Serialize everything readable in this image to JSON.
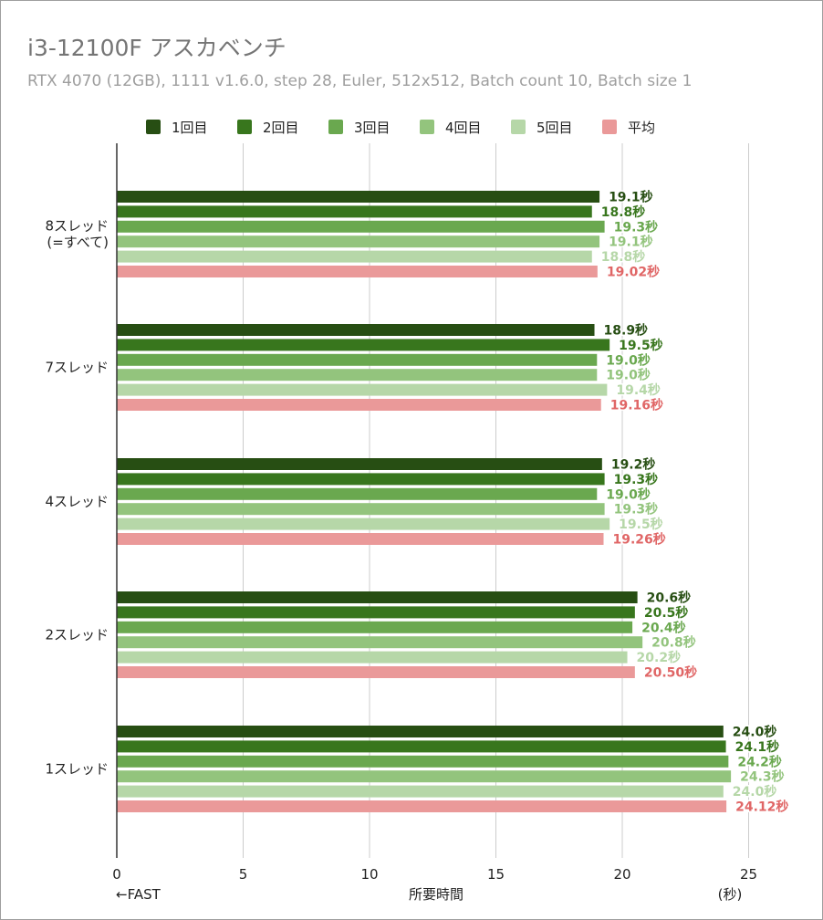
{
  "title": "i3-12100F アスカベンチ",
  "subtitle": "RTX 4070 (12GB), 1111 v1.6.0, step 28, Euler, 512x512, Batch count 10, Batch size 1",
  "colors": {
    "series": [
      "#274e13",
      "#38761d",
      "#6aa84f",
      "#93c47d",
      "#b6d7a8",
      "#ea9999"
    ],
    "labels": [
      "#274e13",
      "#38761d",
      "#6aa84f",
      "#93c47d",
      "#b6d7a8",
      "#e06666"
    ],
    "grid": "#cccccc",
    "axis": "#333333"
  },
  "chart_data": {
    "type": "bar",
    "orientation": "horizontal",
    "title": "i3-12100F アスカベンチ",
    "subtitle": "RTX 4070 (12GB), 1111 v1.6.0, step 28, Euler, 512x512, Batch count 10, Batch size 1",
    "xlabel": "所要時間",
    "xlabel_left": "←FAST",
    "xlabel_right": "(秒)",
    "xlim": [
      0,
      28
    ],
    "xticks": [
      0,
      5,
      10,
      15,
      20,
      25
    ],
    "grid": true,
    "legend_position": "top",
    "value_suffix": "秒",
    "categories": [
      "8スレッド\n(=すべて)",
      "7スレッド",
      "4スレッド",
      "2スレッド",
      "1スレッド"
    ],
    "series": [
      {
        "name": "1回目",
        "values": [
          19.1,
          18.9,
          19.2,
          20.6,
          24.0
        ],
        "labels": [
          "19.1",
          "18.9",
          "19.2",
          "20.6",
          "24.0"
        ]
      },
      {
        "name": "2回目",
        "values": [
          18.8,
          19.5,
          19.3,
          20.5,
          24.1
        ],
        "labels": [
          "18.8",
          "19.5",
          "19.3",
          "20.5",
          "24.1"
        ]
      },
      {
        "name": "3回目",
        "values": [
          19.3,
          19.0,
          19.0,
          20.4,
          24.2
        ],
        "labels": [
          "19.3",
          "19.0",
          "19.0",
          "20.4",
          "24.2"
        ]
      },
      {
        "name": "4回目",
        "values": [
          19.1,
          19.0,
          19.3,
          20.8,
          24.3
        ],
        "labels": [
          "19.1",
          "19.0",
          "19.3",
          "20.8",
          "24.3"
        ]
      },
      {
        "name": "5回目",
        "values": [
          18.8,
          19.4,
          19.5,
          20.2,
          24.0
        ],
        "labels": [
          "18.8",
          "19.4",
          "19.5",
          "20.2",
          "24.0"
        ]
      },
      {
        "name": "平均",
        "values": [
          19.02,
          19.16,
          19.26,
          20.5,
          24.12
        ],
        "labels": [
          "19.02",
          "19.16",
          "19.26",
          "20.50",
          "24.12"
        ]
      }
    ]
  }
}
